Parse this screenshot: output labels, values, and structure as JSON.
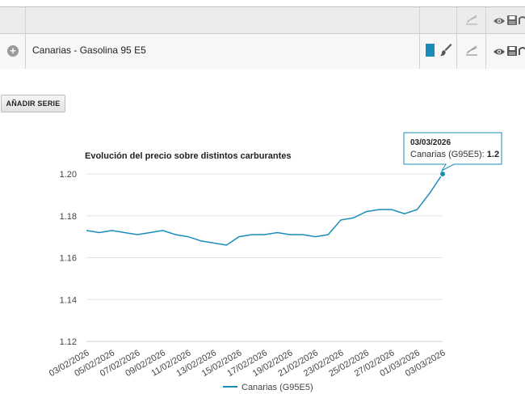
{
  "series_table": {
    "rows": [
      {
        "name": "Canarias - Gasolina 95 E5",
        "color": "#1a8cb8"
      }
    ]
  },
  "toolbar": {
    "add_series_label": "AÑADIR SERIE"
  },
  "chart_data": {
    "type": "line",
    "title": "Evolución del precio sobre distintos carburantes",
    "xlabel": "",
    "ylabel": "",
    "ylim": [
      1.12,
      1.2
    ],
    "yticks": [
      "1.12",
      "1.14",
      "1.16",
      "1.18",
      "1.20"
    ],
    "grid": true,
    "legend": "bottom",
    "x": [
      "03/02/2026",
      "04/02/2026",
      "05/02/2026",
      "06/02/2026",
      "07/02/2026",
      "08/02/2026",
      "09/02/2026",
      "10/02/2026",
      "11/02/2026",
      "12/02/2026",
      "13/02/2026",
      "14/02/2026",
      "15/02/2026",
      "16/02/2026",
      "17/02/2026",
      "18/02/2026",
      "19/02/2026",
      "20/02/2026",
      "21/02/2026",
      "22/02/2026",
      "23/02/2026",
      "24/02/2026",
      "25/02/2026",
      "26/02/2026",
      "27/02/2026",
      "28/02/2026",
      "01/03/2026",
      "02/03/2026",
      "03/03/2026"
    ],
    "xtick_labels": [
      "03/02/2026",
      "05/02/2026",
      "07/02/2026",
      "09/02/2026",
      "11/02/2026",
      "13/02/2026",
      "15/02/2026",
      "17/02/2026",
      "19/02/2026",
      "21/02/2026",
      "23/02/2026",
      "25/02/2026",
      "27/02/2026",
      "01/03/2026",
      "03/03/2026"
    ],
    "series": [
      {
        "name": "Canarias (G95E5)",
        "color": "#1a8cb8",
        "values": [
          1.173,
          1.172,
          1.173,
          1.172,
          1.171,
          1.172,
          1.173,
          1.171,
          1.17,
          1.168,
          1.167,
          1.166,
          1.17,
          1.171,
          1.171,
          1.172,
          1.171,
          1.171,
          1.17,
          1.171,
          1.178,
          1.179,
          1.182,
          1.183,
          1.183,
          1.181,
          1.183,
          1.191,
          1.2
        ]
      }
    ],
    "tooltip": {
      "date": "03/03/2026",
      "label": "Canarias (G95E5): ",
      "value": "1.2"
    }
  }
}
